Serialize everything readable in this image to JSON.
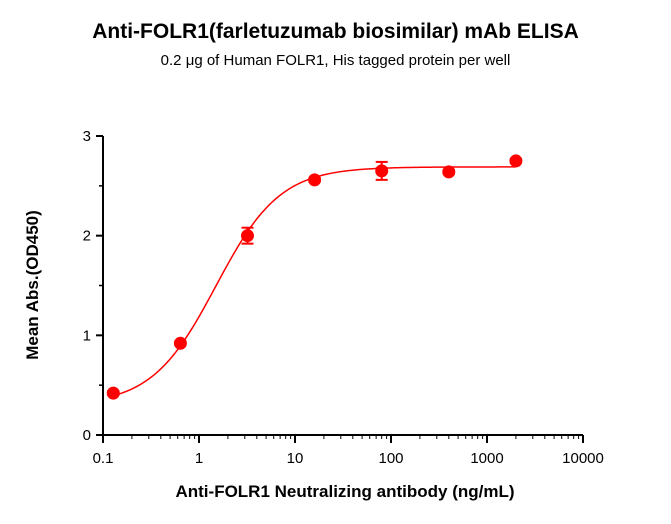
{
  "chart_data": {
    "type": "scatter",
    "title": "Anti-FOLR1(farletuzumab biosimilar) mAb ELISA",
    "subtitle": "0.2 μg of Human FOLR1, His tagged protein per well",
    "xlabel": "Anti-FOLR1 Neutralizing antibody (ng/mL)",
    "ylabel": "Mean Abs.(OD450)",
    "x_scale": "log",
    "xlim": [
      0.1,
      10000
    ],
    "ylim": [
      0,
      3
    ],
    "x_ticks": [
      "0.1",
      "1",
      "10",
      "100",
      "1000",
      "10000"
    ],
    "y_ticks": [
      "0",
      "1",
      "2",
      "3"
    ],
    "grid": false,
    "color": "#ff0000",
    "points": [
      {
        "x": 0.128,
        "y": 0.42,
        "err": 0.02
      },
      {
        "x": 0.64,
        "y": 0.92,
        "err": 0.02
      },
      {
        "x": 3.2,
        "y": 2.0,
        "err": 0.08
      },
      {
        "x": 16,
        "y": 2.56,
        "err": 0.02
      },
      {
        "x": 80,
        "y": 2.65,
        "err": 0.09
      },
      {
        "x": 400,
        "y": 2.64,
        "err": 0.02
      },
      {
        "x": 2000,
        "y": 2.75,
        "err": 0.02
      }
    ],
    "fit": {
      "bottom": 0.3,
      "top": 2.69,
      "ec50": 1.5,
      "hill": 1.3
    }
  }
}
